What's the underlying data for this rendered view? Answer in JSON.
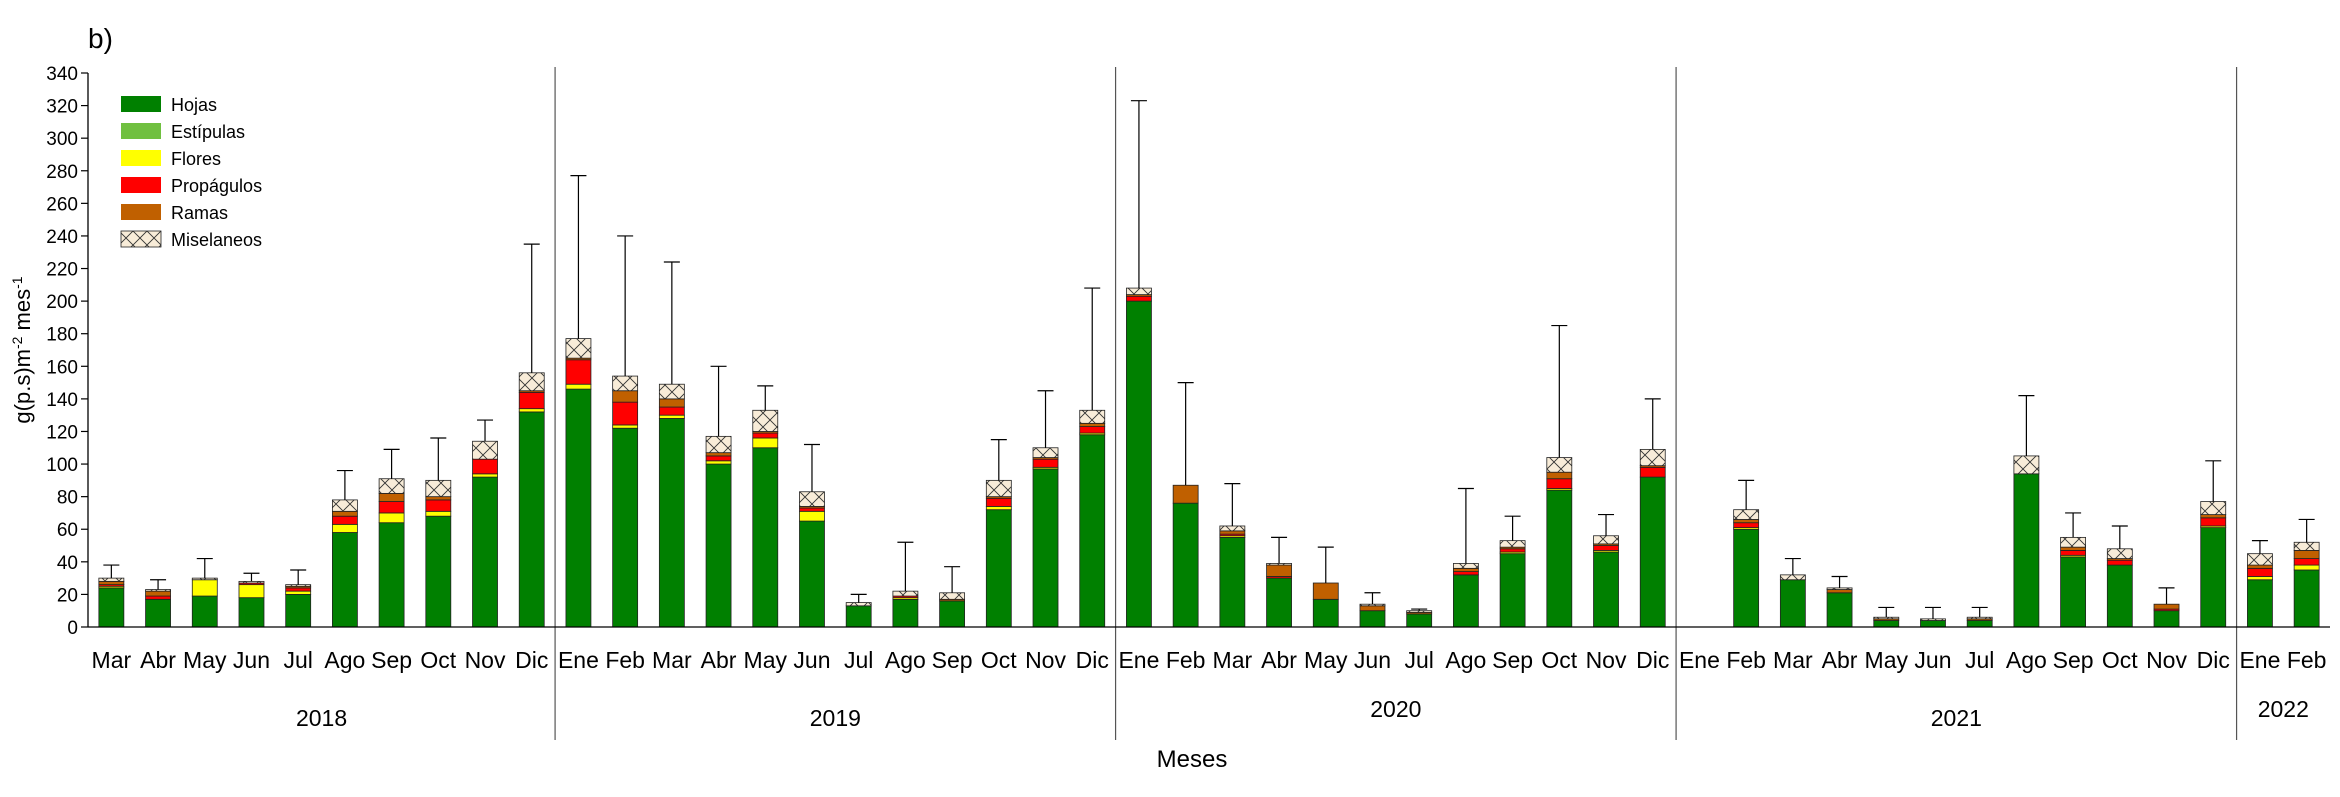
{
  "panel_label": "b)",
  "chart_data": {
    "type": "bar",
    "stacked": true,
    "title": "",
    "xlabel": "Meses",
    "ylabel": "g(p.s)m⁻² mes⁻¹",
    "ylabel_parts": {
      "base": "g(p.s)m",
      "exp1": "-2",
      "mid": " mes",
      "exp2": "-1"
    },
    "ylim": [
      0,
      340
    ],
    "yticks": [
      0,
      20,
      40,
      60,
      80,
      100,
      120,
      140,
      160,
      180,
      200,
      220,
      240,
      260,
      280,
      300,
      320,
      340
    ],
    "legend_position": "top-left",
    "categories": [
      "Mar",
      "Abr",
      "May",
      "Jun",
      "Jul",
      "Ago",
      "Sep",
      "Oct",
      "Nov",
      "Dic",
      "Ene",
      "Feb",
      "Mar",
      "Abr",
      "May",
      "Jun",
      "Jul",
      "Ago",
      "Sep",
      "Oct",
      "Nov",
      "Dic",
      "Ene",
      "Feb",
      "Mar",
      "Abr",
      "May",
      "Jun",
      "Jul",
      "Ago",
      "Sep",
      "Oct",
      "Nov",
      "Dic",
      "Ene",
      "Feb",
      "Mar",
      "Abr",
      "May",
      "Jun",
      "Jul",
      "Ago",
      "Sep",
      "Oct",
      "Nov",
      "Dic",
      "Ene",
      "Feb"
    ],
    "years": [
      {
        "label": "2018",
        "start": 0,
        "count": 10
      },
      {
        "label": "2019",
        "start": 10,
        "count": 12
      },
      {
        "label": "2020",
        "start": 22,
        "count": 12
      },
      {
        "label": "2021",
        "start": 34,
        "count": 12
      },
      {
        "label": "2022",
        "start": 46,
        "count": 2
      }
    ],
    "series": [
      {
        "name": "Hojas",
        "color": "#008000",
        "values": [
          24,
          17,
          19,
          18,
          20,
          58,
          64,
          68,
          92,
          132,
          146,
          122,
          128,
          100,
          110,
          65,
          13,
          17,
          16,
          72,
          97,
          118,
          200,
          76,
          55,
          30,
          17,
          10,
          8,
          32,
          45,
          84,
          46,
          92,
          0,
          60,
          29,
          21,
          4,
          4,
          4,
          94,
          43,
          38,
          10,
          61,
          29,
          35
        ]
      },
      {
        "name": "Estípulas",
        "color": "#70c040",
        "values": [
          0,
          0,
          0,
          0,
          0,
          0,
          0,
          0,
          0,
          0,
          0,
          0,
          0,
          0,
          0,
          0,
          0,
          0,
          0,
          0,
          0,
          0,
          0,
          0,
          0,
          0,
          0,
          0,
          0,
          0,
          0,
          0,
          0,
          0,
          0,
          0,
          0,
          0,
          0,
          0,
          0,
          0,
          0,
          0,
          0,
          0,
          0,
          0
        ]
      },
      {
        "name": "Flores",
        "color": "#ffff00",
        "values": [
          1,
          0,
          10,
          8,
          2,
          5,
          6,
          3,
          2,
          2,
          3,
          2,
          2,
          2,
          6,
          6,
          0,
          1,
          0,
          2,
          1,
          1,
          0,
          0,
          1,
          0,
          0,
          0,
          0,
          0,
          1,
          1,
          1,
          0,
          0,
          1,
          0,
          0,
          0,
          0,
          0,
          0,
          1,
          0,
          0,
          1,
          2,
          3
        ]
      },
      {
        "name": "Propágulos",
        "color": "#ff0000",
        "values": [
          1,
          2,
          0,
          1,
          2,
          5,
          7,
          7,
          9,
          10,
          15,
          14,
          5,
          3,
          3,
          2,
          0,
          1,
          0,
          5,
          5,
          4,
          3,
          0,
          1,
          1,
          0,
          0,
          0,
          2,
          2,
          6,
          3,
          6,
          0,
          3,
          0,
          0,
          0,
          0,
          0,
          0,
          3,
          3,
          1,
          5,
          5,
          4
        ]
      },
      {
        "name": "Ramas",
        "color": "#c06000",
        "values": [
          2,
          3,
          0,
          0,
          1,
          3,
          5,
          2,
          0,
          1,
          1,
          7,
          5,
          2,
          1,
          1,
          0,
          0,
          1,
          1,
          1,
          2,
          1,
          11,
          2,
          7,
          10,
          3,
          1,
          2,
          1,
          4,
          1,
          1,
          0,
          2,
          0,
          2,
          1,
          0,
          1,
          0,
          2,
          1,
          3,
          2,
          2,
          5
        ]
      },
      {
        "name": "Miselaneos",
        "color": "#f8ecd8",
        "pattern": "cross",
        "values": [
          2,
          1,
          1,
          1,
          1,
          7,
          9,
          10,
          11,
          11,
          12,
          9,
          9,
          10,
          13,
          9,
          2,
          3,
          4,
          10,
          6,
          8,
          4,
          0,
          3,
          1,
          0,
          1,
          1,
          3,
          4,
          9,
          5,
          10,
          0,
          6,
          3,
          1,
          1,
          1,
          1,
          11,
          6,
          6,
          0,
          8,
          7,
          5
        ]
      }
    ],
    "error_upper": [
      38,
      29,
      42,
      33,
      35,
      96,
      109,
      116,
      127,
      235,
      277,
      240,
      224,
      160,
      148,
      112,
      20,
      52,
      37,
      115,
      145,
      208,
      323,
      150,
      88,
      55,
      49,
      21,
      11,
      85,
      68,
      185,
      69,
      140,
      0,
      90,
      42,
      31,
      12,
      12,
      12,
      142,
      70,
      62,
      24,
      102,
      53,
      66
    ]
  }
}
